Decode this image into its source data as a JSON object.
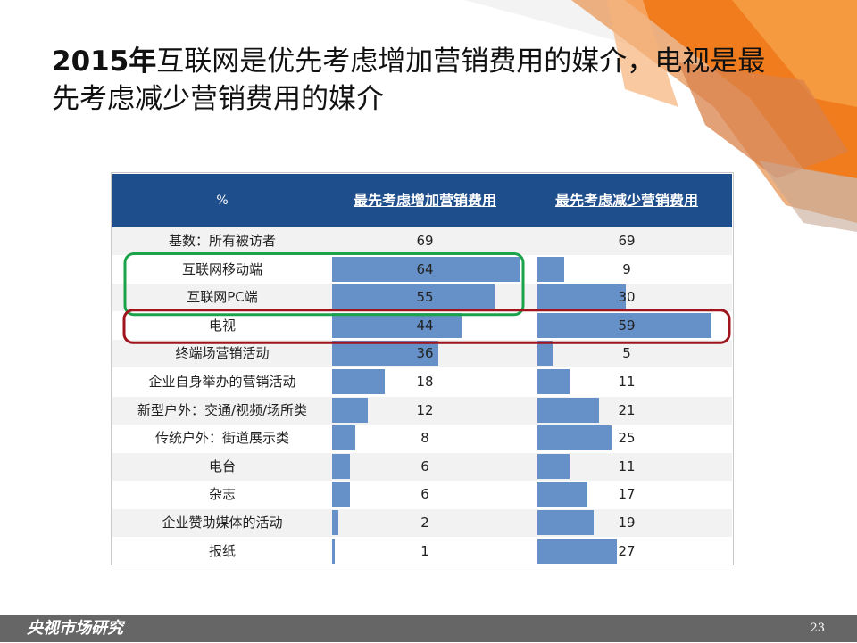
{
  "slide": {
    "title_year": "2015年",
    "title_rest": "互联网是优先考虑增加营销费用的媒介，电视是最先考虑减少营销费用的媒介",
    "footer_brand": "央视市场研究",
    "page_number": "23"
  },
  "colors": {
    "header_bg": "#1f4e8c",
    "bar": "#6591c8",
    "highlight_green": "#1aa34a",
    "highlight_red": "#a0141e",
    "orange_deco": "#f07c1e",
    "footer_bg": "#666666"
  },
  "chart_data": {
    "type": "table",
    "header": {
      "unit": "%",
      "col_increase": "最先考虑增加营销费用",
      "col_decrease": "最先考虑减少营销费用"
    },
    "base": {
      "label": "基数：所有被访者",
      "increase": "69",
      "decrease": "69"
    },
    "rows": [
      {
        "label": "互联网移动端",
        "increase": 64,
        "decrease": 9
      },
      {
        "label": "互联网PC端",
        "increase": 55,
        "decrease": 30
      },
      {
        "label": "电视",
        "increase": 44,
        "decrease": 59
      },
      {
        "label": "终端场营销活动",
        "increase": 36,
        "decrease": 5
      },
      {
        "label": "企业自身举办的营销活动",
        "increase": 18,
        "decrease": 11
      },
      {
        "label": "新型户外：交通/视频/场所类",
        "increase": 12,
        "decrease": 21
      },
      {
        "label": "传统户外：街道展示类",
        "increase": 8,
        "decrease": 25
      },
      {
        "label": "电台",
        "increase": 6,
        "decrease": 11
      },
      {
        "label": "杂志",
        "increase": 6,
        "decrease": 17
      },
      {
        "label": "企业赞助媒体的活动",
        "increase": 2,
        "decrease": 19
      },
      {
        "label": "报纸",
        "increase": 1,
        "decrease": 27
      }
    ],
    "highlights": [
      {
        "rows": [
          "互联网移动端",
          "互联网PC端"
        ],
        "color": "green"
      },
      {
        "rows": [
          "电视"
        ],
        "color": "red"
      }
    ]
  }
}
